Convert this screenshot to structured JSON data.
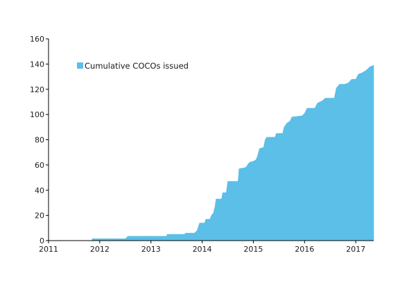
{
  "chart_data": {
    "type": "area",
    "title": "",
    "xlabel": "",
    "ylabel": "",
    "series": [
      {
        "name": "Cumulative COCOs issued",
        "color": "#5bbfe8",
        "points": [
          [
            2011.0,
            0
          ],
          [
            2011.85,
            0
          ],
          [
            2011.85,
            1.5
          ],
          [
            2012.5,
            1.5
          ],
          [
            2012.55,
            3.5
          ],
          [
            2013.3,
            3.5
          ],
          [
            2013.32,
            5
          ],
          [
            2013.65,
            5
          ],
          [
            2013.68,
            6
          ],
          [
            2013.85,
            6
          ],
          [
            2013.9,
            8
          ],
          [
            2013.95,
            14
          ],
          [
            2014.05,
            14
          ],
          [
            2014.07,
            17
          ],
          [
            2014.15,
            17
          ],
          [
            2014.18,
            20
          ],
          [
            2014.22,
            22
          ],
          [
            2014.25,
            27
          ],
          [
            2014.27,
            33
          ],
          [
            2014.38,
            33
          ],
          [
            2014.4,
            38
          ],
          [
            2014.47,
            38
          ],
          [
            2014.5,
            47
          ],
          [
            2014.7,
            47
          ],
          [
            2014.72,
            57
          ],
          [
            2014.85,
            58
          ],
          [
            2014.92,
            62
          ],
          [
            2015.0,
            63
          ],
          [
            2015.05,
            64
          ],
          [
            2015.08,
            67
          ],
          [
            2015.12,
            73
          ],
          [
            2015.2,
            74
          ],
          [
            2015.23,
            80
          ],
          [
            2015.26,
            82
          ],
          [
            2015.42,
            82
          ],
          [
            2015.45,
            85
          ],
          [
            2015.57,
            85
          ],
          [
            2015.6,
            90
          ],
          [
            2015.65,
            93
          ],
          [
            2015.72,
            95
          ],
          [
            2015.75,
            98
          ],
          [
            2015.95,
            99
          ],
          [
            2016.0,
            101
          ],
          [
            2016.05,
            105
          ],
          [
            2016.2,
            105
          ],
          [
            2016.25,
            109
          ],
          [
            2016.35,
            111
          ],
          [
            2016.4,
            113
          ],
          [
            2016.58,
            113
          ],
          [
            2016.62,
            121
          ],
          [
            2016.68,
            124
          ],
          [
            2016.78,
            124
          ],
          [
            2016.85,
            125
          ],
          [
            2016.92,
            128
          ],
          [
            2017.0,
            128
          ],
          [
            2017.05,
            132
          ],
          [
            2017.12,
            133
          ],
          [
            2017.2,
            135
          ],
          [
            2017.28,
            138
          ],
          [
            2017.35,
            139
          ]
        ]
      }
    ],
    "xlim": [
      2011,
      2017.35
    ],
    "ylim": [
      0,
      160
    ],
    "x_ticks": [
      2011,
      2012,
      2013,
      2014,
      2015,
      2016,
      2017
    ],
    "x_tick_labels": [
      "2011",
      "2012",
      "2013",
      "2014",
      "2015",
      "2016",
      "2017"
    ],
    "y_ticks": [
      0,
      20,
      40,
      60,
      80,
      100,
      120,
      140,
      160
    ],
    "y_tick_labels": [
      "0",
      "20",
      "40",
      "60",
      "80",
      "100",
      "120",
      "140",
      "160"
    ],
    "grid": false,
    "legend_position": "top-left"
  }
}
